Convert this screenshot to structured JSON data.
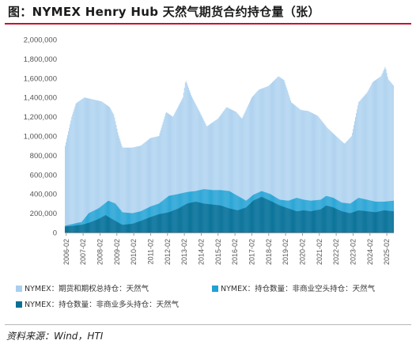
{
  "title": "图：NYMEX Henry Hub 天然气期货合约持仓量（张）",
  "source": "资料来源：Wind，HTI",
  "colors": {
    "accent_rule": "#c8102e",
    "total_oi": "#a9cfee",
    "noncommercial_short": "#1fa2d4",
    "noncommercial_long": "#0b6f94",
    "axis": "#9a9a9a"
  },
  "chart_data": {
    "type": "bar",
    "title": "",
    "xlabel": "",
    "ylabel": "",
    "ylim": [
      0,
      2000000
    ],
    "yticks": [
      "0",
      "200,000",
      "400,000",
      "600,000",
      "800,000",
      "1,000,000",
      "1,200,000",
      "1,400,000",
      "1,600,000",
      "1,800,000",
      "2,000,000"
    ],
    "ytick_values": [
      0,
      200000,
      400000,
      600000,
      800000,
      1000000,
      1200000,
      1400000,
      1600000,
      1800000,
      2000000
    ],
    "x_range": [
      "2006-01",
      "2025-07"
    ],
    "xticks": [
      "2006-02",
      "2007-02",
      "2008-02",
      "2009-02",
      "2010-02",
      "2011-02",
      "2012-02",
      "2013-02",
      "2014-02",
      "2015-02",
      "2016-02",
      "2017-02",
      "2018-02",
      "2019-02",
      "2020-02",
      "2021-02",
      "2022-02",
      "2023-02",
      "2024-02",
      "2025-02"
    ],
    "grid": false,
    "legend_position": "bottom",
    "series_interpolation": "linear",
    "series": [
      {
        "name": "NYMEX：期货和期权总持仓：天然气",
        "color": "#a9cfee",
        "points": [
          [
            "2006-01",
            880000
          ],
          [
            "2006-06",
            1200000
          ],
          [
            "2006-09",
            1340000
          ],
          [
            "2007-03",
            1400000
          ],
          [
            "2007-09",
            1380000
          ],
          [
            "2008-03",
            1360000
          ],
          [
            "2008-09",
            1300000
          ],
          [
            "2008-12",
            1220000
          ],
          [
            "2009-03",
            1020000
          ],
          [
            "2009-06",
            880000
          ],
          [
            "2010-01",
            880000
          ],
          [
            "2010-07",
            900000
          ],
          [
            "2011-02",
            980000
          ],
          [
            "2011-08",
            1000000
          ],
          [
            "2012-01",
            1250000
          ],
          [
            "2012-06",
            1200000
          ],
          [
            "2013-01",
            1400000
          ],
          [
            "2013-03",
            1580000
          ],
          [
            "2013-07",
            1420000
          ],
          [
            "2014-01",
            1250000
          ],
          [
            "2014-06",
            1100000
          ],
          [
            "2015-02",
            1180000
          ],
          [
            "2015-08",
            1300000
          ],
          [
            "2016-03",
            1250000
          ],
          [
            "2016-07",
            1180000
          ],
          [
            "2017-02",
            1400000
          ],
          [
            "2017-07",
            1480000
          ],
          [
            "2018-02",
            1520000
          ],
          [
            "2018-09",
            1620000
          ],
          [
            "2019-01",
            1580000
          ],
          [
            "2019-06",
            1350000
          ],
          [
            "2020-01",
            1270000
          ],
          [
            "2020-06",
            1260000
          ],
          [
            "2021-01",
            1210000
          ],
          [
            "2021-08",
            1080000
          ],
          [
            "2022-02",
            1000000
          ],
          [
            "2022-08",
            920000
          ],
          [
            "2023-01",
            1000000
          ],
          [
            "2023-06",
            1350000
          ],
          [
            "2023-12",
            1450000
          ],
          [
            "2024-04",
            1560000
          ],
          [
            "2024-10",
            1620000
          ],
          [
            "2025-01",
            1720000
          ],
          [
            "2025-03",
            1590000
          ],
          [
            "2025-07",
            1520000
          ]
        ]
      },
      {
        "name": "NYMEX：持仓数量：非商业空头持仓：天然气",
        "color": "#1fa2d4",
        "points": [
          [
            "2006-01",
            70000
          ],
          [
            "2007-01",
            110000
          ],
          [
            "2007-06",
            200000
          ],
          [
            "2008-01",
            250000
          ],
          [
            "2008-08",
            330000
          ],
          [
            "2009-01",
            300000
          ],
          [
            "2009-06",
            210000
          ],
          [
            "2010-01",
            200000
          ],
          [
            "2010-07",
            220000
          ],
          [
            "2011-02",
            270000
          ],
          [
            "2011-08",
            300000
          ],
          [
            "2012-03",
            380000
          ],
          [
            "2012-10",
            400000
          ],
          [
            "2013-04",
            420000
          ],
          [
            "2013-10",
            430000
          ],
          [
            "2014-04",
            450000
          ],
          [
            "2014-10",
            440000
          ],
          [
            "2015-04",
            440000
          ],
          [
            "2015-10",
            430000
          ],
          [
            "2016-04",
            380000
          ],
          [
            "2016-10",
            330000
          ],
          [
            "2017-03",
            390000
          ],
          [
            "2017-09",
            430000
          ],
          [
            "2018-03",
            400000
          ],
          [
            "2018-10",
            340000
          ],
          [
            "2019-04",
            330000
          ],
          [
            "2019-10",
            360000
          ],
          [
            "2020-03",
            340000
          ],
          [
            "2020-08",
            330000
          ],
          [
            "2021-03",
            340000
          ],
          [
            "2021-07",
            380000
          ],
          [
            "2021-12",
            360000
          ],
          [
            "2022-06",
            310000
          ],
          [
            "2022-12",
            300000
          ],
          [
            "2023-06",
            360000
          ],
          [
            "2023-12",
            340000
          ],
          [
            "2024-06",
            320000
          ],
          [
            "2024-12",
            320000
          ],
          [
            "2025-07",
            330000
          ]
        ]
      },
      {
        "name": "NYMEX：持仓数量：非商业多头持仓：天然气",
        "color": "#0b6f94",
        "points": [
          [
            "2006-01",
            60000
          ],
          [
            "2007-01",
            80000
          ],
          [
            "2007-06",
            100000
          ],
          [
            "2008-01",
            140000
          ],
          [
            "2008-06",
            180000
          ],
          [
            "2009-01",
            120000
          ],
          [
            "2009-06",
            80000
          ],
          [
            "2010-01",
            90000
          ],
          [
            "2010-07",
            120000
          ],
          [
            "2011-02",
            160000
          ],
          [
            "2011-08",
            190000
          ],
          [
            "2012-03",
            210000
          ],
          [
            "2012-10",
            250000
          ],
          [
            "2013-04",
            300000
          ],
          [
            "2013-10",
            320000
          ],
          [
            "2014-04",
            300000
          ],
          [
            "2014-10",
            290000
          ],
          [
            "2015-04",
            280000
          ],
          [
            "2015-10",
            250000
          ],
          [
            "2016-04",
            230000
          ],
          [
            "2016-10",
            260000
          ],
          [
            "2017-03",
            330000
          ],
          [
            "2017-09",
            370000
          ],
          [
            "2018-03",
            330000
          ],
          [
            "2018-10",
            280000
          ],
          [
            "2019-04",
            250000
          ],
          [
            "2019-10",
            220000
          ],
          [
            "2020-03",
            230000
          ],
          [
            "2020-08",
            220000
          ],
          [
            "2021-03",
            240000
          ],
          [
            "2021-07",
            280000
          ],
          [
            "2021-12",
            260000
          ],
          [
            "2022-06",
            220000
          ],
          [
            "2022-12",
            200000
          ],
          [
            "2023-06",
            230000
          ],
          [
            "2023-12",
            220000
          ],
          [
            "2024-06",
            210000
          ],
          [
            "2024-12",
            230000
          ],
          [
            "2025-07",
            220000
          ]
        ]
      }
    ]
  }
}
